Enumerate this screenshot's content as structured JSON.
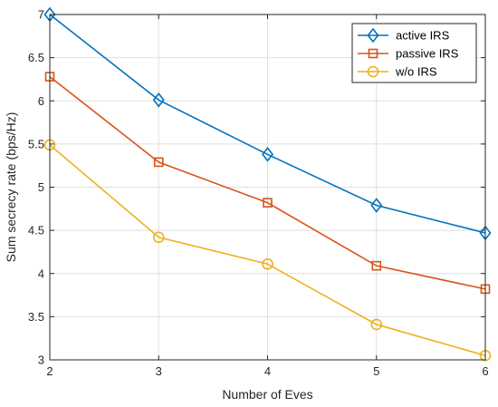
{
  "chart_data": {
    "type": "line",
    "title": "",
    "xlabel": "Number of Eves",
    "ylabel": "Sum secrecy rate (bps/Hz)",
    "x": [
      2,
      3,
      4,
      5,
      6
    ],
    "xlim": [
      2,
      6
    ],
    "ylim": [
      3,
      7
    ],
    "xticks": [
      "2",
      "3",
      "4",
      "5",
      "6"
    ],
    "yticks": [
      "3",
      "3.5",
      "4",
      "4.5",
      "5",
      "5.5",
      "6",
      "6.5",
      "7"
    ],
    "grid": true,
    "legend_position": "top-right",
    "series": [
      {
        "name": "active IRS",
        "color": "#0072BD",
        "marker": "diamond",
        "values": [
          7.0,
          6.01,
          5.38,
          4.79,
          4.47
        ]
      },
      {
        "name": "passive IRS",
        "color": "#D95319",
        "marker": "square",
        "values": [
          6.28,
          5.29,
          4.82,
          4.09,
          3.82
        ]
      },
      {
        "name": "w/o IRS",
        "color": "#EDB120",
        "marker": "circle",
        "values": [
          5.49,
          4.42,
          4.11,
          3.41,
          3.05
        ]
      }
    ]
  }
}
